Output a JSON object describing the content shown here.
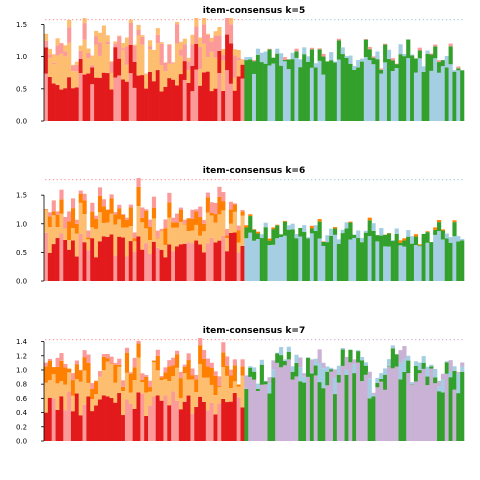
{
  "chart_data": [
    {
      "type": "bar",
      "title": "item-consensus k=5",
      "ylim": [
        0,
        1.6
      ],
      "yticks": [
        "0.0",
        "0.5",
        "1.0",
        "1.5"
      ],
      "ytick_values": [
        0,
        0.5,
        1.0,
        1.5
      ],
      "n_items": 109,
      "items_per_group": [
        52,
        57
      ],
      "group_profiles": [
        {
          "group": 1,
          "typical_total": 1.2,
          "bottom_class": "red/pink",
          "top_classes": [
            "orange-light",
            "pink"
          ]
        },
        {
          "group": 2,
          "typical_total": 1.1,
          "bottom_class": "light-blue",
          "top_classes": [
            "green"
          ]
        }
      ],
      "classes": [
        {
          "name": "1",
          "color": "#E31A1C"
        },
        {
          "name": "2",
          "color": "#FB9A99"
        },
        {
          "name": "3",
          "color": "#FDBF6F"
        },
        {
          "name": "4",
          "color": "#A6CEE3"
        },
        {
          "name": "5",
          "color": "#33A02C"
        }
      ],
      "grid": false
    },
    {
      "type": "bar",
      "title": "item-consensus k=6",
      "ylim": [
        0,
        1.8
      ],
      "yticks": [
        "0.0",
        "0.5",
        "1.0",
        "1.5"
      ],
      "ytick_values": [
        0,
        0.5,
        1.0,
        1.5
      ],
      "n_items": 109,
      "items_per_group": [
        52,
        57
      ],
      "group_profiles": [
        {
          "group": 1,
          "typical_total": 1.35,
          "bottom_class": "red/pink",
          "top_classes": [
            "orange",
            "orange-light"
          ]
        },
        {
          "group": 2,
          "typical_total": 0.95,
          "bottom_class": "light-blue",
          "top_classes": [
            "green"
          ]
        }
      ],
      "classes": [
        {
          "name": "1",
          "color": "#E31A1C"
        },
        {
          "name": "2",
          "color": "#FB9A99"
        },
        {
          "name": "3",
          "color": "#FDBF6F"
        },
        {
          "name": "4",
          "color": "#FF7F00"
        },
        {
          "name": "5",
          "color": "#A6CEE3"
        },
        {
          "name": "6",
          "color": "#33A02C"
        }
      ],
      "grid": false
    },
    {
      "type": "bar",
      "title": "item-consensus k=7",
      "ylim": [
        0,
        1.45
      ],
      "yticks": [
        "0.0",
        "0.2",
        "0.4",
        "0.6",
        "0.8",
        "1.0",
        "1.2",
        "1.4"
      ],
      "ytick_values": [
        0,
        0.2,
        0.4,
        0.6,
        0.8,
        1.0,
        1.2,
        1.4
      ],
      "n_items": 109,
      "items_per_group": [
        52,
        57
      ],
      "group_profiles": [
        {
          "group": 1,
          "typical_total": 1.05,
          "bottom_class": "red/pink",
          "top_classes": [
            "orange",
            "orange-light"
          ]
        },
        {
          "group": 2,
          "typical_total": 1.1,
          "bottom_class": "lavender",
          "top_classes": [
            "green",
            "light-blue"
          ]
        }
      ],
      "classes": [
        {
          "name": "1",
          "color": "#E31A1C"
        },
        {
          "name": "2",
          "color": "#FB9A99"
        },
        {
          "name": "3",
          "color": "#FDBF6F"
        },
        {
          "name": "4",
          "color": "#FF7F00"
        },
        {
          "name": "5",
          "color": "#CAB2D6"
        },
        {
          "name": "6",
          "color": "#A6CEE3"
        },
        {
          "name": "7",
          "color": "#33A02C"
        }
      ],
      "grid": false
    }
  ]
}
